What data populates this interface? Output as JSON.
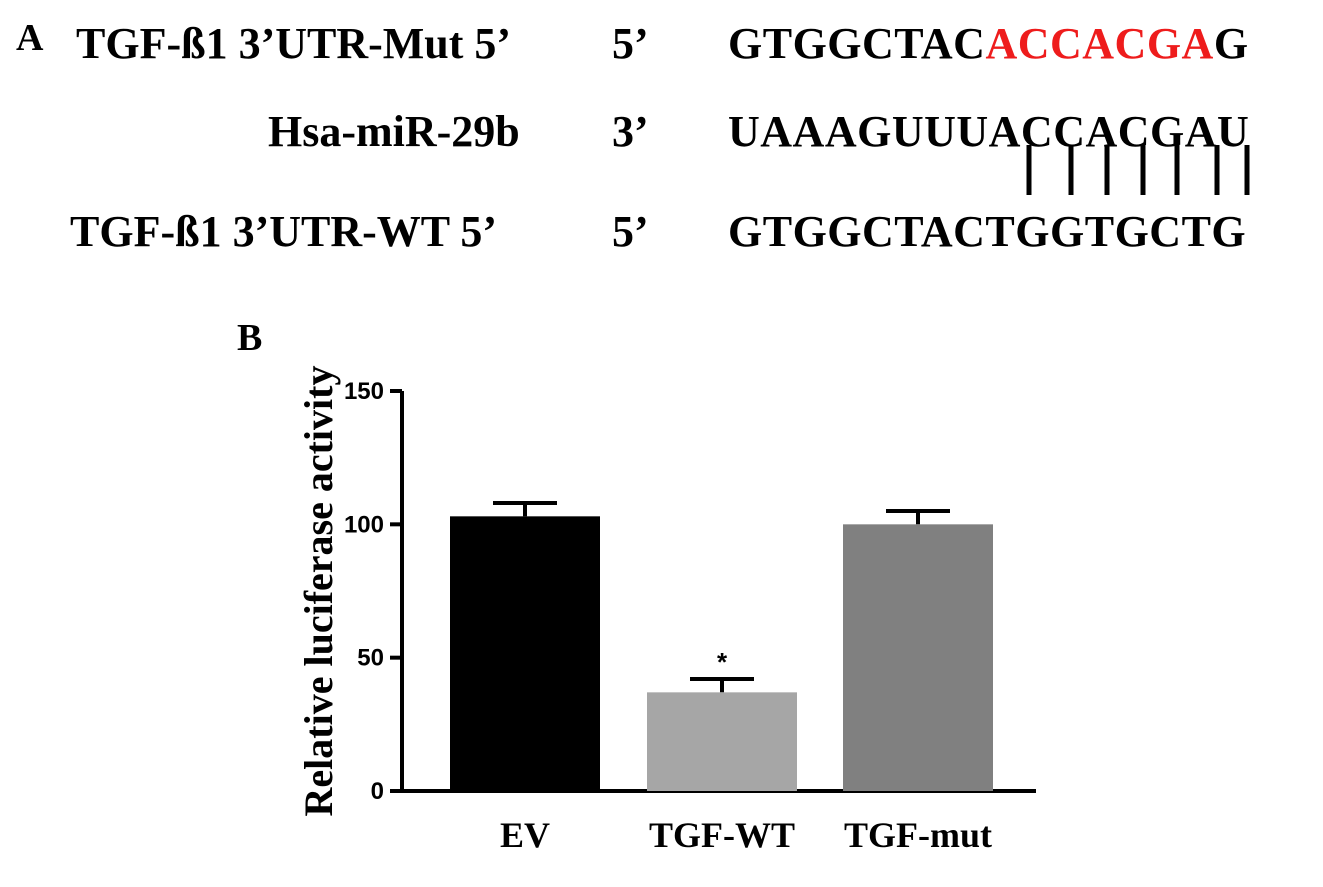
{
  "panel_a": {
    "label": "A",
    "rows": [
      {
        "name": "TGF-ß1 3’UTR-Mut 5’",
        "end": "5’",
        "seq_plain": "GTGGCTAC",
        "seq_highlight": "ACCACGA",
        "seq_tail": "G"
      },
      {
        "name": "Hsa-miR-29b",
        "end": "3’",
        "seq_plain": "UAAAGUUUACCACGAU",
        "seq_highlight": "",
        "seq_tail": ""
      },
      {
        "name": "TGF-ß1 3’UTR-WT 5’",
        "end": "5’",
        "seq_plain": "GTGGCTACTGGTGCTG",
        "seq_highlight": "",
        "seq_tail": ""
      }
    ],
    "pair_count": 7,
    "highlight_color": "#ee1c1c"
  },
  "panel_b": {
    "label": "B"
  },
  "chart_data": {
    "type": "bar",
    "title": "",
    "xlabel": "",
    "ylabel": "Relative luciferase activity",
    "ylim": [
      0,
      150
    ],
    "yticks": [
      0,
      50,
      100,
      150
    ],
    "categories": [
      "EV",
      "TGF-WT",
      "TGF-mut"
    ],
    "values": [
      103,
      37,
      100
    ],
    "errors": [
      5,
      5,
      5
    ],
    "colors": [
      "#000000",
      "#a6a6a6",
      "#808080"
    ],
    "annotations": [
      "",
      "*",
      ""
    ],
    "grid": false
  }
}
